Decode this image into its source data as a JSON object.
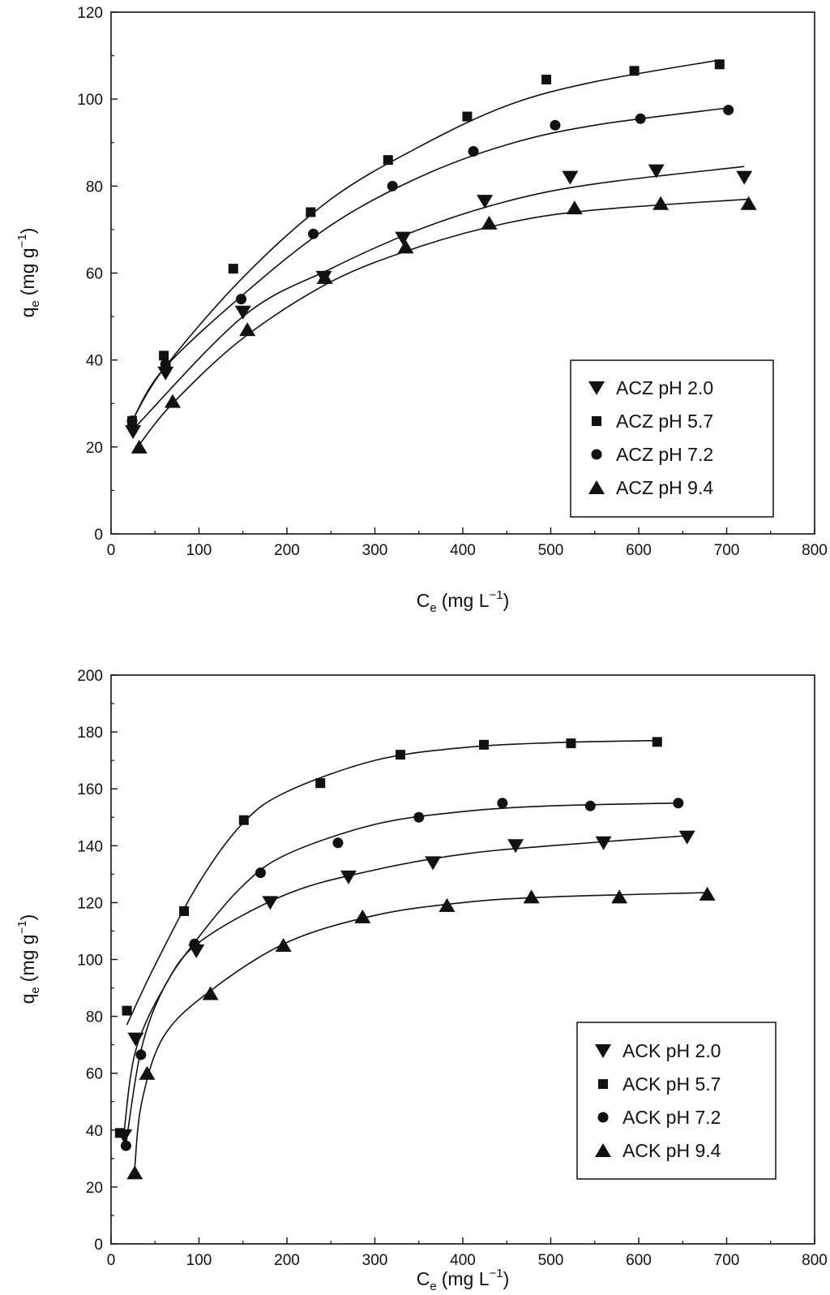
{
  "chart_data": [
    {
      "type": "scatter",
      "title": "",
      "xlabel": {
        "main": "C",
        "sub": "e",
        "unit": "(mg L",
        "sup": "−1",
        "close": ")"
      },
      "ylabel": {
        "main": "q",
        "sub": "e",
        "unit": "(mg g",
        "sup": "−1",
        "close": ")"
      },
      "xlim": [
        0,
        800
      ],
      "ylim": [
        0,
        120
      ],
      "xticks": [
        "0",
        "100",
        "200",
        "300",
        "400",
        "500",
        "600",
        "700",
        "800"
      ],
      "yticks": [
        "0",
        "20",
        "40",
        "60",
        "80",
        "100",
        "120"
      ],
      "grid": false,
      "legend_position": "bottom-right",
      "fitted_curves": true,
      "series": [
        {
          "name": "ACZ pH 2.0",
          "marker": "triangle-down",
          "x": [
            25,
            62,
            150,
            242,
            332,
            425,
            522,
            620,
            720
          ],
          "y": [
            23.5,
            37,
            51,
            59,
            68,
            76.5,
            82,
            83.5,
            82
          ],
          "fit": [
            [
              25,
              24
            ],
            [
              150,
              50
            ],
            [
              250,
              61
            ],
            [
              350,
              70
            ],
            [
              450,
              76.5
            ],
            [
              550,
              80.5
            ],
            [
              720,
              84.5
            ]
          ]
        },
        {
          "name": "ACZ pH 5.7",
          "marker": "square",
          "x": [
            24,
            60,
            139,
            227,
            315,
            405,
            495,
            595,
            692
          ],
          "y": [
            26,
            41,
            61,
            74,
            86,
            96,
            104.5,
            106.5,
            108
          ],
          "fit": [
            [
              24,
              26
            ],
            [
              60,
              38
            ],
            [
              150,
              59
            ],
            [
              250,
              77
            ],
            [
              350,
              89
            ],
            [
              450,
              98.5
            ],
            [
              550,
              104
            ],
            [
              692,
              109
            ]
          ]
        },
        {
          "name": "ACZ pH 7.2",
          "marker": "circle",
          "x": [
            24,
            62,
            148,
            230,
            320,
            412,
            505,
            602,
            702
          ],
          "y": [
            26,
            39,
            54,
            69,
            80,
            88,
            94,
            95.5,
            97.5
          ],
          "fit": [
            [
              24,
              26
            ],
            [
              60,
              38
            ],
            [
              150,
              55
            ],
            [
              250,
              71
            ],
            [
              350,
              82
            ],
            [
              450,
              89.5
            ],
            [
              550,
              94
            ],
            [
              702,
              98
            ]
          ]
        },
        {
          "name": "ACZ pH 9.4",
          "marker": "triangle-up",
          "x": [
            32,
            70,
            155,
            243,
            335,
            430,
            527,
            625,
            725
          ],
          "y": [
            20,
            30.5,
            47,
            59,
            66,
            71.5,
            75,
            76,
            76
          ],
          "fit": [
            [
              32,
              20.5
            ],
            [
              70,
              30
            ],
            [
              150,
              45
            ],
            [
              250,
              58
            ],
            [
              350,
              66
            ],
            [
              450,
              71.5
            ],
            [
              550,
              74.5
            ],
            [
              725,
              77
            ]
          ]
        }
      ]
    },
    {
      "type": "scatter",
      "title": "",
      "xlabel": {
        "main": "C",
        "sub": "e",
        "unit": "(mg L",
        "sup": "−1",
        "close": ")"
      },
      "ylabel": {
        "main": "q",
        "sub": "e",
        "unit": "(mg g",
        "sup": "−1",
        "close": ")"
      },
      "xlim": [
        0,
        800
      ],
      "ylim": [
        0,
        200
      ],
      "xticks": [
        "0",
        "100",
        "200",
        "300",
        "400",
        "500",
        "600",
        "700",
        "800"
      ],
      "yticks": [
        "0",
        "20",
        "40",
        "60",
        "80",
        "100",
        "120",
        "140",
        "160",
        "180",
        "200"
      ],
      "grid": false,
      "legend_position": "bottom-right",
      "fitted_curves": true,
      "series": [
        {
          "name": "ACK pH 2.0",
          "marker": "triangle-down",
          "x": [
            15,
            28,
            97,
            181,
            270,
            366,
            460,
            560,
            655
          ],
          "y": [
            38,
            72,
            103,
            120,
            129,
            134,
            140,
            141,
            143
          ],
          "fit": [
            [
              15,
              40
            ],
            [
              28,
              68
            ],
            [
              60,
              90
            ],
            [
              100,
              106
            ],
            [
              200,
              123
            ],
            [
              300,
              131.5
            ],
            [
              400,
              137
            ],
            [
              500,
              140
            ],
            [
              655,
              143.5
            ]
          ]
        },
        {
          "name": "ACK pH 5.7",
          "marker": "square",
          "x": [
            10,
            18,
            83,
            151,
            238,
            329,
            424,
            523,
            621
          ],
          "y": [
            39,
            82,
            117,
            149,
            162,
            172,
            175.5,
            176,
            176.5
          ],
          "fit": [
            [
              18,
              77
            ],
            [
              50,
              98
            ],
            [
              100,
              127
            ],
            [
              150,
              148
            ],
            [
              200,
              159
            ],
            [
              300,
              170
            ],
            [
              400,
              174.5
            ],
            [
              500,
              176.2
            ],
            [
              621,
              177
            ]
          ]
        },
        {
          "name": "ACK pH 7.2",
          "marker": "circle",
          "x": [
            17,
            34,
            95,
            170,
            258,
            350,
            445,
            545,
            645
          ],
          "y": [
            34.5,
            66.5,
            105.5,
            130.5,
            141,
            150,
            155,
            154,
            155
          ],
          "fit": [
            [
              17,
              35
            ],
            [
              34,
              68
            ],
            [
              60,
              90
            ],
            [
              100,
              108
            ],
            [
              150,
              126
            ],
            [
              200,
              137
            ],
            [
              300,
              147.5
            ],
            [
              400,
              152
            ],
            [
              500,
              154
            ],
            [
              645,
              155
            ]
          ]
        },
        {
          "name": "ACK pH 9.4",
          "marker": "triangle-up",
          "x": [
            27,
            41,
            113,
            196,
            286,
            382,
            478,
            578,
            678
          ],
          "y": [
            25,
            60,
            88,
            105,
            115,
            119,
            122,
            122,
            123
          ],
          "fit": [
            [
              27,
              27
            ],
            [
              35,
              50
            ],
            [
              60,
              73
            ],
            [
              113,
              89
            ],
            [
              200,
              106
            ],
            [
              300,
              115.5
            ],
            [
              400,
              120
            ],
            [
              500,
              122
            ],
            [
              678,
              123.5
            ]
          ]
        }
      ]
    }
  ]
}
